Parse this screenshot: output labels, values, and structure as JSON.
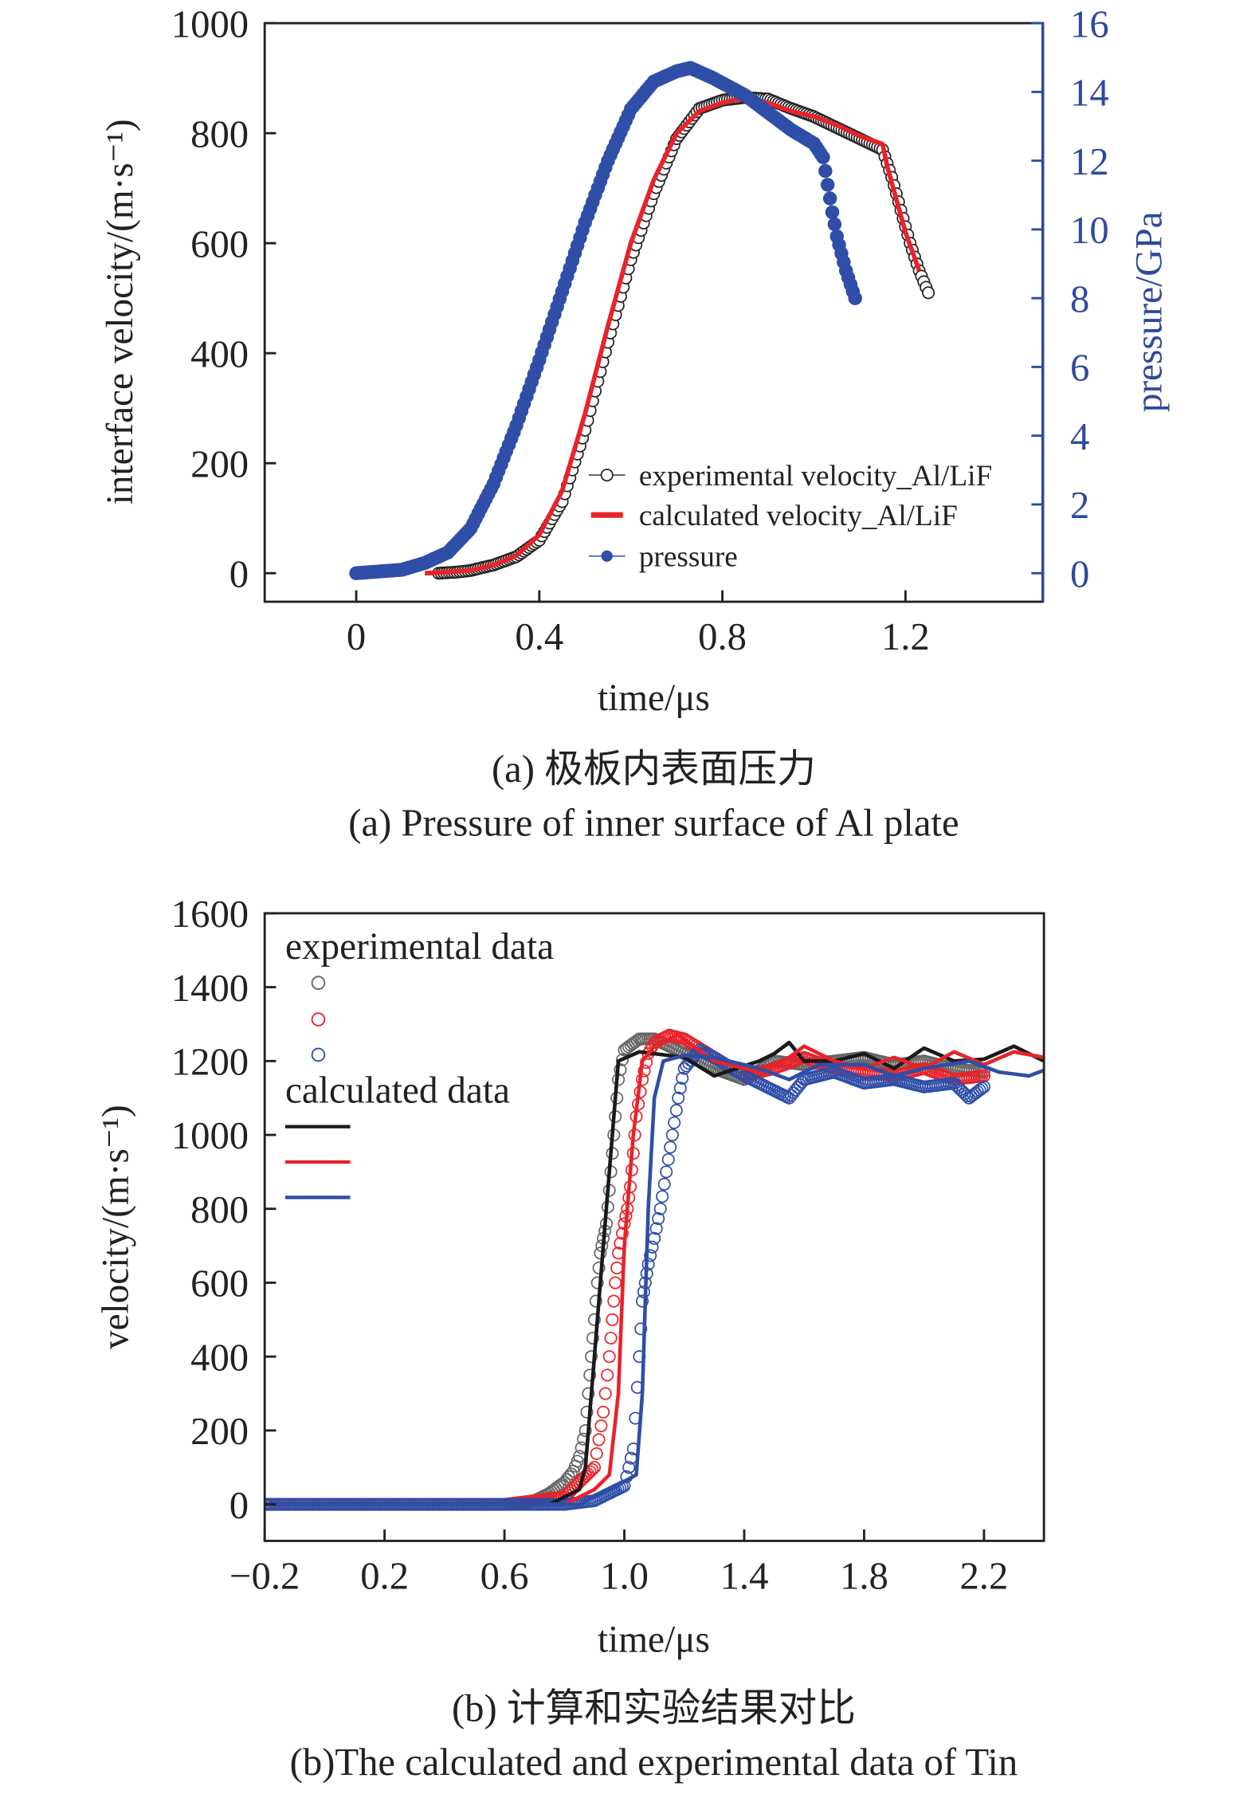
{
  "chart_data": [
    {
      "type": "line",
      "caption_cn": "(a) 极板内表面压力",
      "caption_en": "(a) Pressure of inner surface of Al plate",
      "xlabel": "time/μs",
      "ylabel": "interface velocity/(m·s⁻¹)",
      "y2label": "pressure/GPa",
      "xlim": [
        -0.2,
        1.5
      ],
      "ylim": [
        0,
        1000
      ],
      "y2lim": [
        0,
        16
      ],
      "xticks": [
        "0",
        "0.4",
        "0.8",
        "1.2"
      ],
      "yticks": [
        "0",
        "200",
        "400",
        "600",
        "800",
        "1000"
      ],
      "y2ticks": [
        "0",
        "2",
        "4",
        "6",
        "8",
        "10",
        "12",
        "14",
        "16"
      ],
      "legend_position": "lower-right",
      "colors": {
        "experimental": "#222222",
        "calculated": "#e8232a",
        "pressure": "#2f4ea8",
        "right_axis": "#2e4a9e"
      },
      "series": [
        {
          "name": "experimental velocity_Al/LiF",
          "axis": "left",
          "style": "open-circle",
          "x": [
            0.18,
            0.22,
            0.25,
            0.3,
            0.35,
            0.4,
            0.45,
            0.5,
            0.55,
            0.6,
            0.65,
            0.7,
            0.75,
            0.8,
            0.85,
            0.9,
            0.95,
            1.0,
            1.05,
            1.1,
            1.15,
            1.17,
            1.19,
            1.21,
            1.23,
            1.25
          ],
          "y": [
            0,
            2,
            5,
            15,
            30,
            60,
            130,
            260,
            420,
            570,
            690,
            790,
            845,
            860,
            865,
            862,
            845,
            830,
            810,
            790,
            770,
            720,
            660,
            600,
            550,
            510
          ]
        },
        {
          "name": "calculated velocity_Al/LiF",
          "axis": "left",
          "style": "line",
          "x": [
            0.15,
            0.2,
            0.25,
            0.3,
            0.35,
            0.4,
            0.45,
            0.5,
            0.55,
            0.6,
            0.65,
            0.7,
            0.75,
            0.8,
            0.85,
            0.9,
            0.95,
            1.0,
            1.05,
            1.1,
            1.15,
            1.16,
            1.18,
            1.2,
            1.23
          ],
          "y": [
            0,
            2,
            5,
            15,
            32,
            70,
            150,
            290,
            450,
            600,
            715,
            800,
            840,
            855,
            865,
            855,
            840,
            830,
            815,
            795,
            780,
            740,
            680,
            620,
            550
          ]
        },
        {
          "name": "pressure",
          "axis": "right",
          "style": "filled-circle",
          "x": [
            0,
            0.05,
            0.1,
            0.15,
            0.2,
            0.25,
            0.3,
            0.35,
            0.4,
            0.45,
            0.5,
            0.55,
            0.6,
            0.65,
            0.7,
            0.73,
            0.78,
            0.85,
            0.9,
            0.95,
            1.0,
            1.02,
            1.03,
            1.04,
            1.05,
            1.06,
            1.07,
            1.08,
            1.09
          ],
          "y": [
            0,
            0.05,
            0.1,
            0.3,
            0.6,
            1.3,
            2.6,
            4.3,
            6.2,
            8.2,
            10.2,
            12.0,
            13.5,
            14.3,
            14.6,
            14.7,
            14.4,
            13.9,
            13.4,
            12.9,
            12.5,
            12.1,
            11.3,
            10.5,
            9.8,
            9.3,
            8.8,
            8.4,
            8.0
          ]
        }
      ]
    },
    {
      "type": "line",
      "caption_cn": "(b) 计算和实验结果对比",
      "caption_en": "(b)The calculated and experimental data of Tin",
      "xlabel": "time/μs",
      "ylabel": "velocity/(m·s⁻¹)",
      "xlim": [
        -0.2,
        2.4
      ],
      "ylim": [
        0,
        1600
      ],
      "xticks": [
        "−0.2",
        "0.2",
        "0.6",
        "1.0",
        "1.4",
        "1.8",
        "2.2"
      ],
      "yticks": [
        "0",
        "200",
        "400",
        "600",
        "800",
        "1000",
        "1200",
        "1400",
        "1600"
      ],
      "legend_position": "top-left",
      "legend": {
        "experimental_title": "experimental data",
        "calculated_title": "calculated data"
      },
      "series": [
        {
          "group": "calculated",
          "color": "#1a1a1a",
          "style": "line",
          "x": [
            -0.2,
            0.75,
            0.8,
            0.85,
            0.87,
            0.9,
            0.93,
            0.96,
            0.98,
            1.05,
            1.2,
            1.3,
            1.45,
            1.5,
            1.55,
            1.6,
            1.7,
            1.8,
            1.9,
            2.0,
            2.1,
            2.2,
            2.3,
            2.4
          ],
          "y": [
            0,
            0,
            20,
            40,
            100,
            400,
            700,
            1000,
            1200,
            1225,
            1210,
            1160,
            1200,
            1220,
            1250,
            1200,
            1200,
            1220,
            1180,
            1235,
            1200,
            1205,
            1240,
            1200
          ]
        },
        {
          "group": "calculated",
          "color": "#e8232a",
          "style": "line",
          "x": [
            -0.2,
            0.8,
            0.9,
            0.95,
            0.98,
            1.0,
            1.03,
            1.06,
            1.1,
            1.18,
            1.3,
            1.45,
            1.55,
            1.6,
            1.7,
            1.8,
            1.9,
            2.0,
            2.1,
            2.2,
            2.3,
            2.4
          ],
          "y": [
            0,
            0,
            40,
            80,
            300,
            700,
            1000,
            1200,
            1240,
            1270,
            1200,
            1170,
            1210,
            1240,
            1200,
            1180,
            1210,
            1180,
            1225,
            1190,
            1225,
            1210
          ]
        },
        {
          "group": "calculated",
          "color": "#2f4ea8",
          "style": "line",
          "x": [
            -0.2,
            0.85,
            0.95,
            1.04,
            1.06,
            1.08,
            1.1,
            1.13,
            1.2,
            1.3,
            1.45,
            1.55,
            1.65,
            1.8,
            1.9,
            2.0,
            2.15,
            2.25,
            2.35,
            2.4
          ],
          "y": [
            0,
            0,
            40,
            80,
            300,
            800,
            1100,
            1200,
            1215,
            1210,
            1180,
            1150,
            1190,
            1190,
            1160,
            1180,
            1200,
            1170,
            1160,
            1175
          ]
        },
        {
          "group": "experimental",
          "color": "#666666",
          "style": "open-circle",
          "x": [
            -0.2,
            0,
            0.2,
            0.4,
            0.6,
            0.7,
            0.75,
            0.8,
            0.83,
            0.85,
            0.87,
            0.88,
            0.89,
            0.9,
            0.91,
            0.92,
            0.93,
            0.94,
            0.95,
            0.96,
            0.97,
            0.98,
            1.0,
            1.05,
            1.1,
            1.2,
            1.3,
            1.4,
            1.5,
            1.6,
            1.7,
            1.8,
            1.9,
            2.0,
            2.1,
            2.2
          ],
          "y": [
            0,
            0,
            0,
            0,
            0,
            10,
            30,
            60,
            90,
            130,
            200,
            300,
            400,
            500,
            600,
            680,
            720,
            760,
            850,
            950,
            1050,
            1150,
            1230,
            1260,
            1260,
            1220,
            1180,
            1150,
            1200,
            1190,
            1200,
            1210,
            1190,
            1200,
            1180,
            1170
          ]
        },
        {
          "group": "experimental",
          "color": "#e8232a",
          "style": "open-circle",
          "x": [
            -0.2,
            0,
            0.2,
            0.4,
            0.6,
            0.8,
            0.85,
            0.9,
            0.93,
            0.95,
            0.96,
            0.97,
            0.98,
            1.0,
            1.01,
            1.02,
            1.03,
            1.04,
            1.06,
            1.08,
            1.1,
            1.15,
            1.2,
            1.3,
            1.4,
            1.5,
            1.6,
            1.7,
            1.8,
            1.9,
            2.0,
            2.1,
            2.2
          ],
          "y": [
            0,
            0,
            0,
            0,
            0,
            20,
            60,
            100,
            250,
            400,
            500,
            600,
            680,
            760,
            800,
            860,
            950,
            1050,
            1150,
            1220,
            1250,
            1270,
            1260,
            1210,
            1160,
            1180,
            1210,
            1180,
            1170,
            1160,
            1180,
            1150,
            1160
          ]
        },
        {
          "group": "experimental",
          "color": "#2f4ea8",
          "style": "open-circle",
          "x": [
            -0.2,
            0,
            0.2,
            0.4,
            0.6,
            0.8,
            0.9,
            0.95,
            1.0,
            1.03,
            1.05,
            1.06,
            1.07,
            1.08,
            1.1,
            1.12,
            1.14,
            1.16,
            1.18,
            1.2,
            1.25,
            1.3,
            1.4,
            1.5,
            1.55,
            1.6,
            1.7,
            1.8,
            1.9,
            2.0,
            2.1,
            2.15,
            2.2
          ],
          "y": [
            0,
            0,
            0,
            0,
            0,
            0,
            10,
            30,
            50,
            150,
            400,
            550,
            600,
            650,
            720,
            800,
            900,
            1000,
            1100,
            1180,
            1230,
            1210,
            1160,
            1120,
            1100,
            1150,
            1170,
            1140,
            1150,
            1130,
            1140,
            1100,
            1130
          ]
        }
      ]
    }
  ]
}
